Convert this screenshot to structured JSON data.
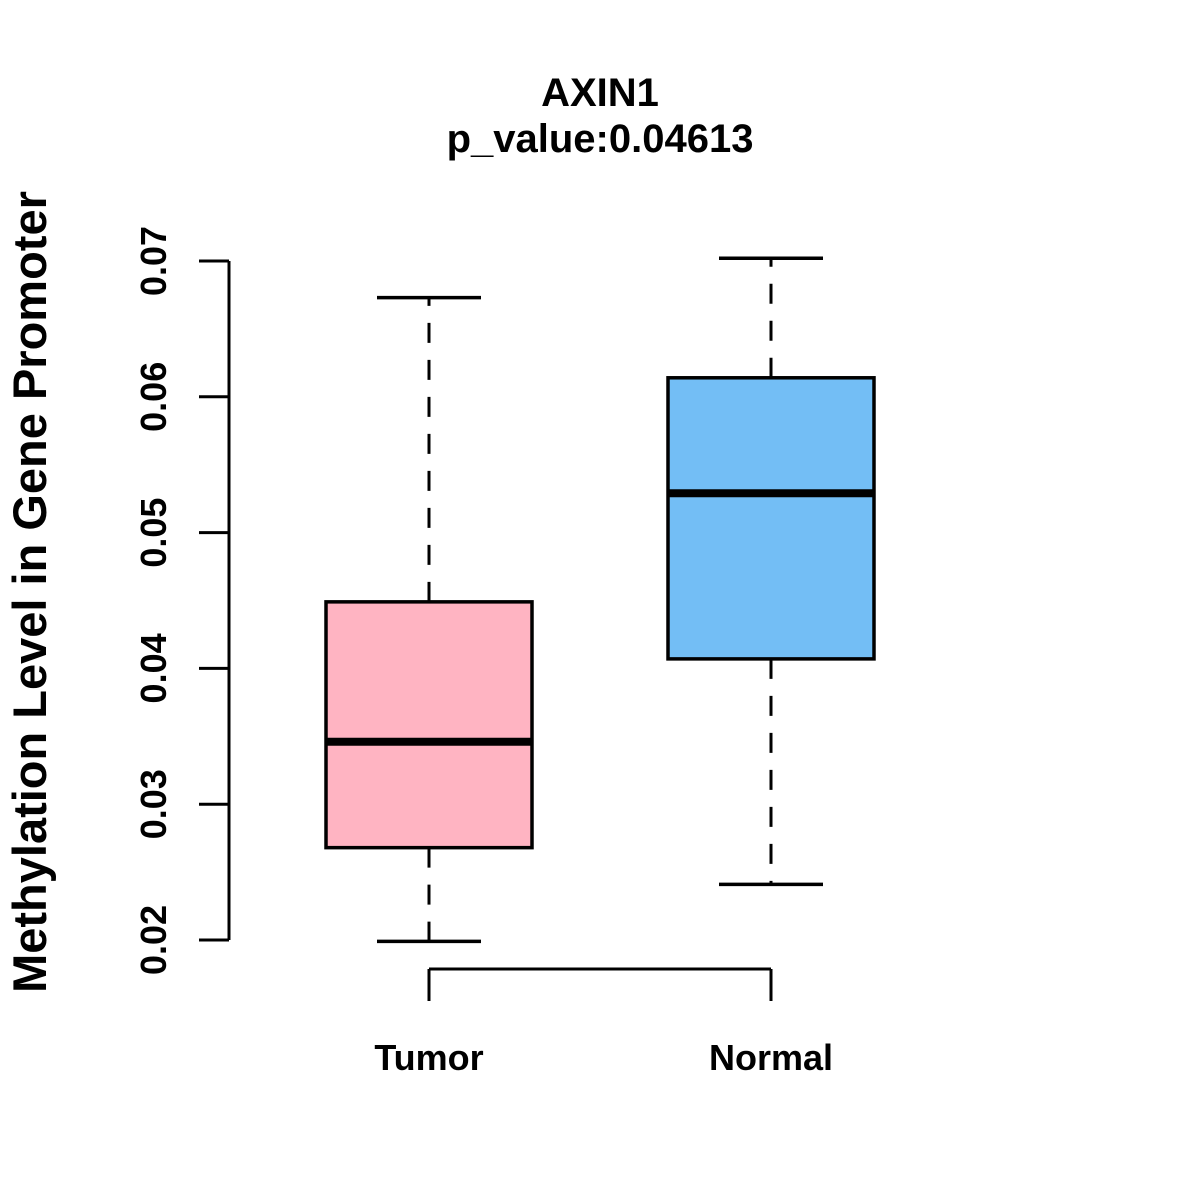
{
  "chart_data": {
    "type": "boxplot",
    "title": "AXIN1",
    "subtitle": "p_value:0.04613",
    "gene": "AXIN1",
    "p_value": 0.04613,
    "ylabel": "Methylation Level in Gene Promoter",
    "ylim": [
      0.02,
      0.07
    ],
    "yticks": [
      0.02,
      0.03,
      0.04,
      0.05,
      0.06,
      0.07
    ],
    "ytick_labels": [
      "0.02",
      "0.03",
      "0.04",
      "0.05",
      "0.06",
      "0.07"
    ],
    "grid": false,
    "legend": "none",
    "whisker_line_style": "dashed",
    "axis_color": "#000000",
    "text_color": "#000000",
    "background_color": "#ffffff",
    "groups": [
      {
        "label": "Tumor",
        "fill": "#ffb4c2",
        "stroke": "#000000",
        "stats": {
          "min": 0.0199,
          "q1": 0.0268,
          "median": 0.0346,
          "q3": 0.0449,
          "max": 0.0673
        }
      },
      {
        "label": "Normal",
        "fill": "#73bef5",
        "stroke": "#000000",
        "stats": {
          "min": 0.0241,
          "q1": 0.0407,
          "median": 0.0529,
          "q3": 0.0614,
          "max": 0.0702
        }
      }
    ]
  }
}
